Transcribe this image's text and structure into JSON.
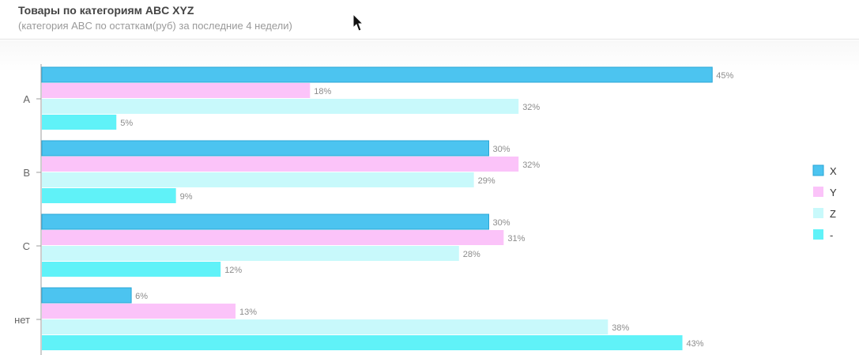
{
  "header": {
    "title": "Товары по категориям ABC XYZ",
    "subtitle": "(категория ABC по остаткам(руб) за последние 4 недели)"
  },
  "colors": {
    "X": "#4cc4f0",
    "Y": "#fbc3f9",
    "Z": "#c8f9fb",
    "-": "#60f2f8"
  },
  "chart_data": {
    "type": "bar",
    "orientation": "horizontal",
    "title": "Товары по категориям ABC XYZ",
    "subtitle": "(категория ABC по остаткам(руб) за последние 4 недели)",
    "categories": [
      "A",
      "B",
      "C",
      "нет"
    ],
    "series": [
      {
        "name": "X",
        "values": [
          45,
          30,
          30,
          6
        ],
        "labels": [
          "45%",
          "30%",
          "30%",
          "6%"
        ]
      },
      {
        "name": "Y",
        "values": [
          18,
          32,
          31,
          13
        ],
        "labels": [
          "18%",
          "32%",
          "31%",
          "13%"
        ]
      },
      {
        "name": "Z",
        "values": [
          32,
          29,
          28,
          38
        ],
        "labels": [
          "32%",
          "29%",
          "28%",
          "38%"
        ]
      },
      {
        "name": "-",
        "values": [
          5,
          9,
          12,
          43
        ],
        "labels": [
          "5%",
          "9%",
          "12%",
          "43%"
        ]
      }
    ],
    "legend_position": "right",
    "grid": false
  }
}
